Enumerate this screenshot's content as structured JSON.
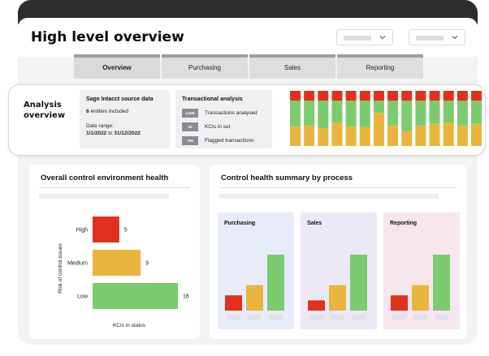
{
  "header": {
    "title": "High level overview"
  },
  "tabs": [
    {
      "label": "Overview",
      "active": true
    },
    {
      "label": "Purchasing",
      "active": false
    },
    {
      "label": "Sales",
      "active": false
    },
    {
      "label": "Reporting",
      "active": false
    }
  ],
  "analysis": {
    "title_line1": "Analysis",
    "title_line2": "overview",
    "source_card": {
      "title": "Sage Intacct source data",
      "entities_count": "6",
      "entities_label": "entities included",
      "date_range_label": "Date range:",
      "date_start": "1/1/2022",
      "date_sep": "to",
      "date_end": "31/12/2022"
    },
    "transactional_card": {
      "title": "Transactional analysis",
      "stats": [
        {
          "value": "2,836",
          "label": "Transactions analysed"
        },
        {
          "value": "30",
          "label": "KCIs in set"
        },
        {
          "value": "796",
          "label": "Flagged transactions"
        }
      ]
    }
  },
  "colors": {
    "red": "#e0301e",
    "yellow": "#eab53f",
    "green": "#7acc6f",
    "purchasing_bg": "#e7ecf8",
    "sales_bg": "#ede8f5",
    "reporting_bg": "#f6e6ee"
  },
  "health_panel": {
    "title": "Overall control environment health"
  },
  "summary_panel": {
    "title": "Control health summary by process"
  },
  "chart_data": [
    {
      "type": "bar",
      "orientation": "stacked-vertical",
      "series_colors": [
        "red",
        "green",
        "yellow"
      ],
      "stacks": [
        [
          0.18,
          0.47,
          0.35
        ],
        [
          0.18,
          0.45,
          0.37
        ],
        [
          0.18,
          0.5,
          0.32
        ],
        [
          0.18,
          0.4,
          0.42
        ],
        [
          0.18,
          0.47,
          0.35
        ],
        [
          0.18,
          0.48,
          0.34
        ],
        [
          0.18,
          0.22,
          0.6
        ],
        [
          0.18,
          0.45,
          0.37
        ],
        [
          0.18,
          0.55,
          0.27
        ],
        [
          0.18,
          0.45,
          0.37
        ],
        [
          0.18,
          0.42,
          0.4
        ],
        [
          0.18,
          0.4,
          0.42
        ],
        [
          0.18,
          0.45,
          0.37
        ],
        [
          0.18,
          0.42,
          0.4
        ]
      ]
    },
    {
      "type": "bar",
      "orientation": "horizontal",
      "categories": [
        "High",
        "Medium",
        "Low"
      ],
      "values": [
        5,
        9,
        16
      ],
      "colors": [
        "red",
        "yellow",
        "green"
      ],
      "xlabel": "KCIs in status",
      "ylabel": "Risk of control issues",
      "xlim": [
        0,
        16
      ]
    },
    {
      "type": "bar",
      "title": "Purchasing",
      "categories": [
        "red",
        "yellow",
        "green"
      ],
      "values": [
        3,
        5,
        11
      ],
      "ylim": [
        0,
        11
      ]
    },
    {
      "type": "bar",
      "title": "Sales",
      "categories": [
        "red",
        "yellow",
        "green"
      ],
      "values": [
        2,
        5,
        11
      ],
      "ylim": [
        0,
        11
      ]
    },
    {
      "type": "bar",
      "title": "Reporting",
      "categories": [
        "red",
        "yellow",
        "green"
      ],
      "values": [
        3,
        5,
        11
      ],
      "ylim": [
        0,
        11
      ]
    }
  ]
}
